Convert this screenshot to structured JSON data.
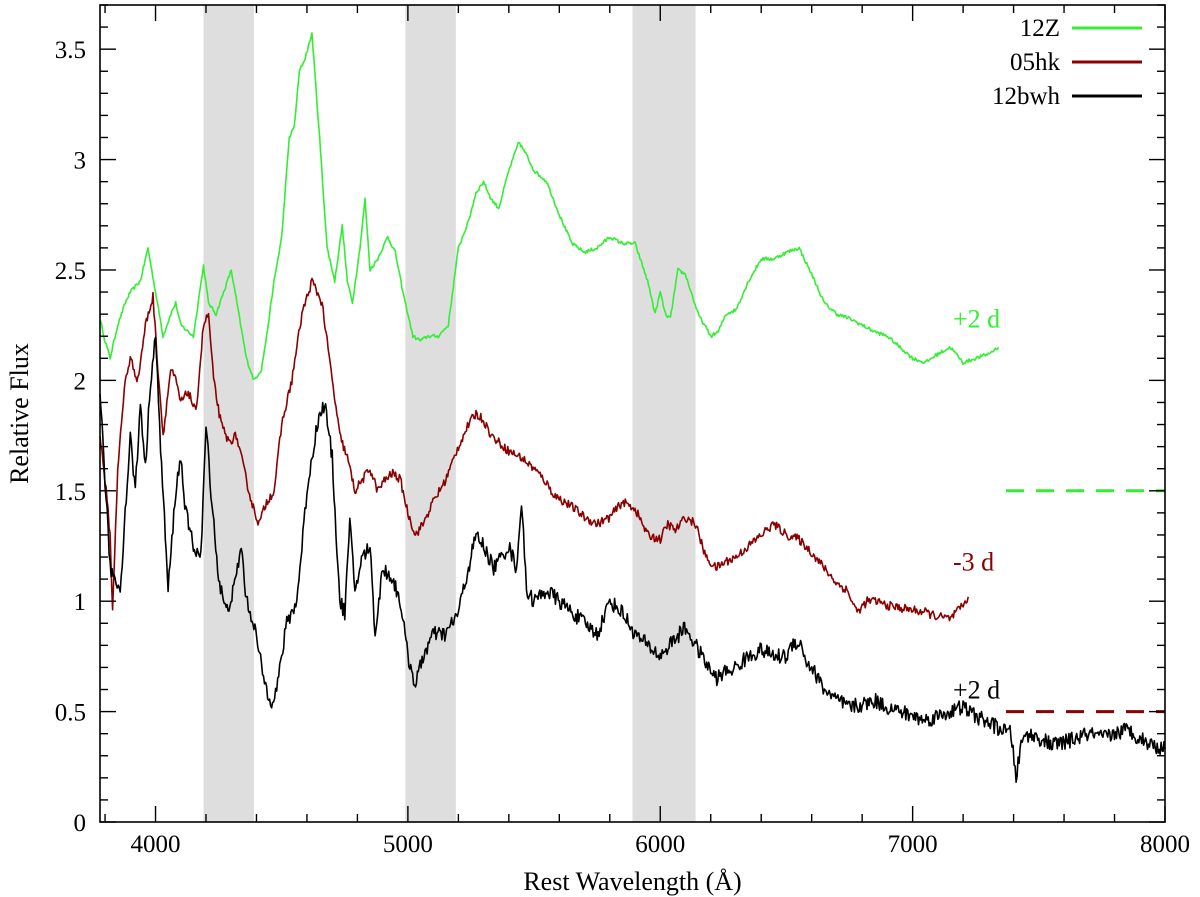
{
  "chart_data": {
    "type": "line",
    "xlabel": "Rest Wavelength (Å)",
    "ylabel": "Relative Flux",
    "xlim": [
      3780,
      8000
    ],
    "ylim": [
      0,
      3.7
    ],
    "xticks": [
      4000,
      5000,
      6000,
      7000,
      8000
    ],
    "yticks": [
      0,
      0.5,
      1,
      1.5,
      2,
      2.5,
      3,
      3.5
    ],
    "ytick_labels": [
      "0",
      "0.5",
      "1",
      "1.5",
      "2",
      "2.5",
      "3",
      "3.5"
    ],
    "grid": false,
    "legend": "top-right",
    "shaded_bands": [
      [
        4190,
        4390
      ],
      [
        4990,
        5190
      ],
      [
        5890,
        6140
      ]
    ],
    "colors": {
      "12Z": "#33ee33",
      "05hk": "#8b0000",
      "12bwh": "#000000",
      "band": "#dedede"
    },
    "series": [
      {
        "name": "12Z",
        "x": [
          3780,
          3800,
          3820,
          3850,
          3880,
          3900,
          3940,
          3970,
          4000,
          4030,
          4060,
          4080,
          4100,
          4150,
          4190,
          4210,
          4240,
          4270,
          4300,
          4330,
          4360,
          4390,
          4420,
          4440,
          4470,
          4500,
          4530,
          4550,
          4570,
          4590,
          4620,
          4650,
          4680,
          4710,
          4740,
          4760,
          4780,
          4810,
          4830,
          4850,
          4880,
          4920,
          4950,
          4980,
          5000,
          5020,
          5050,
          5080,
          5120,
          5160,
          5200,
          5240,
          5270,
          5300,
          5330,
          5360,
          5400,
          5440,
          5470,
          5500,
          5550,
          5600,
          5650,
          5700,
          5750,
          5800,
          5850,
          5900,
          5950,
          5980,
          6000,
          6020,
          6040,
          6070,
          6100,
          6150,
          6200,
          6230,
          6260,
          6300,
          6350,
          6400,
          6450,
          6500,
          6550,
          6600,
          6650,
          6700,
          6750,
          6800,
          6850,
          6900,
          6950,
          7000,
          7050,
          7100,
          7150,
          7200,
          7250,
          7300,
          7340
        ],
        "y": [
          2.28,
          2.18,
          2.1,
          2.25,
          2.35,
          2.4,
          2.45,
          2.6,
          2.4,
          2.2,
          2.3,
          2.35,
          2.25,
          2.2,
          2.52,
          2.35,
          2.3,
          2.4,
          2.5,
          2.3,
          2.1,
          2.0,
          2.05,
          2.2,
          2.45,
          2.65,
          3.1,
          3.15,
          3.4,
          3.45,
          3.57,
          3.1,
          2.6,
          2.45,
          2.7,
          2.45,
          2.35,
          2.6,
          2.82,
          2.5,
          2.55,
          2.65,
          2.58,
          2.4,
          2.3,
          2.2,
          2.18,
          2.2,
          2.2,
          2.25,
          2.6,
          2.72,
          2.85,
          2.9,
          2.82,
          2.78,
          2.95,
          3.08,
          3.02,
          2.95,
          2.9,
          2.75,
          2.62,
          2.58,
          2.6,
          2.65,
          2.62,
          2.62,
          2.45,
          2.3,
          2.4,
          2.3,
          2.28,
          2.5,
          2.48,
          2.3,
          2.2,
          2.22,
          2.3,
          2.32,
          2.45,
          2.55,
          2.55,
          2.58,
          2.6,
          2.48,
          2.35,
          2.3,
          2.28,
          2.25,
          2.22,
          2.2,
          2.15,
          2.1,
          2.08,
          2.12,
          2.15,
          2.08,
          2.1,
          2.12,
          2.15
        ]
      },
      {
        "name": "05hk",
        "x": [
          3780,
          3800,
          3820,
          3830,
          3850,
          3880,
          3900,
          3930,
          3960,
          3990,
          4010,
          4030,
          4060,
          4080,
          4100,
          4130,
          4160,
          4190,
          4210,
          4230,
          4260,
          4290,
          4320,
          4350,
          4380,
          4410,
          4440,
          4470,
          4500,
          4540,
          4580,
          4620,
          4660,
          4700,
          4730,
          4760,
          4790,
          4820,
          4850,
          4880,
          4910,
          4940,
          4970,
          5000,
          5030,
          5060,
          5100,
          5150,
          5200,
          5240,
          5270,
          5300,
          5330,
          5360,
          5400,
          5450,
          5500,
          5540,
          5580,
          5620,
          5660,
          5700,
          5750,
          5800,
          5850,
          5900,
          5950,
          6000,
          6030,
          6060,
          6100,
          6140,
          6180,
          6220,
          6260,
          6300,
          6350,
          6400,
          6450,
          6500,
          6550,
          6600,
          6650,
          6700,
          6740,
          6760,
          6780,
          6820,
          6860,
          6900,
          6950,
          7000,
          7050,
          7100,
          7150,
          7200,
          7220
        ],
        "y": [
          1.75,
          1.55,
          1.3,
          0.95,
          1.6,
          2.0,
          2.1,
          2.0,
          2.25,
          2.38,
          2.05,
          1.75,
          2.05,
          2.0,
          1.9,
          1.95,
          1.85,
          2.25,
          2.3,
          2.0,
          1.8,
          1.72,
          1.75,
          1.6,
          1.45,
          1.35,
          1.45,
          1.5,
          1.8,
          2.0,
          2.3,
          2.45,
          2.35,
          2.0,
          1.75,
          1.65,
          1.5,
          1.55,
          1.6,
          1.5,
          1.55,
          1.58,
          1.55,
          1.4,
          1.3,
          1.35,
          1.45,
          1.55,
          1.7,
          1.8,
          1.85,
          1.82,
          1.75,
          1.72,
          1.68,
          1.65,
          1.6,
          1.55,
          1.48,
          1.45,
          1.42,
          1.38,
          1.35,
          1.38,
          1.45,
          1.42,
          1.3,
          1.28,
          1.35,
          1.32,
          1.38,
          1.35,
          1.2,
          1.15,
          1.18,
          1.2,
          1.25,
          1.3,
          1.35,
          1.3,
          1.28,
          1.22,
          1.15,
          1.08,
          1.05,
          1.0,
          0.95,
          1.0,
          1.0,
          0.98,
          0.97,
          0.96,
          0.95,
          0.93,
          0.92,
          0.98,
          1.02
        ]
      },
      {
        "name": "12bwh",
        "x": [
          3780,
          3800,
          3820,
          3840,
          3860,
          3880,
          3900,
          3920,
          3940,
          3960,
          3980,
          4000,
          4020,
          4050,
          4080,
          4100,
          4120,
          4150,
          4180,
          4200,
          4220,
          4250,
          4280,
          4310,
          4340,
          4360,
          4390,
          4420,
          4440,
          4460,
          4480,
          4520,
          4560,
          4600,
          4640,
          4670,
          4700,
          4730,
          4750,
          4770,
          4790,
          4820,
          4850,
          4870,
          4900,
          4940,
          4970,
          5000,
          5030,
          5060,
          5100,
          5150,
          5200,
          5240,
          5270,
          5300,
          5340,
          5370,
          5400,
          5430,
          5450,
          5470,
          5500,
          5550,
          5600,
          5650,
          5700,
          5750,
          5800,
          5850,
          5900,
          5950,
          6000,
          6050,
          6100,
          6140,
          6180,
          6220,
          6260,
          6300,
          6350,
          6400,
          6450,
          6500,
          6530,
          6560,
          6580,
          6600,
          6650,
          6700,
          6750,
          6800,
          6850,
          6900,
          6950,
          7000,
          7050,
          7100,
          7150,
          7200,
          7250,
          7300,
          7350,
          7390,
          7410,
          7430,
          7450,
          7500,
          7550,
          7600,
          7650,
          7700,
          7750,
          7800,
          7850,
          7900,
          7950,
          8000
        ],
        "y": [
          1.95,
          1.55,
          1.15,
          1.1,
          1.05,
          1.4,
          1.75,
          1.5,
          1.9,
          1.6,
          2.0,
          2.2,
          1.7,
          1.05,
          1.5,
          1.65,
          1.4,
          1.25,
          1.2,
          1.8,
          1.5,
          1.1,
          0.95,
          1.05,
          1.25,
          1.0,
          0.9,
          0.7,
          0.6,
          0.55,
          0.6,
          0.9,
          1.0,
          1.5,
          1.8,
          1.9,
          1.65,
          1.0,
          0.95,
          1.35,
          1.05,
          1.2,
          1.25,
          0.85,
          1.15,
          1.1,
          1.0,
          0.75,
          0.62,
          0.75,
          0.85,
          0.85,
          0.95,
          1.15,
          1.3,
          1.25,
          1.15,
          1.2,
          1.25,
          1.15,
          1.45,
          1.05,
          1.0,
          1.05,
          1.0,
          0.95,
          0.9,
          0.85,
          1.0,
          0.95,
          0.85,
          0.8,
          0.75,
          0.82,
          0.88,
          0.8,
          0.72,
          0.65,
          0.68,
          0.7,
          0.75,
          0.78,
          0.75,
          0.75,
          0.82,
          0.8,
          0.72,
          0.7,
          0.6,
          0.55,
          0.52,
          0.53,
          0.55,
          0.52,
          0.5,
          0.48,
          0.46,
          0.48,
          0.5,
          0.52,
          0.48,
          0.45,
          0.42,
          0.4,
          0.2,
          0.35,
          0.4,
          0.38,
          0.35,
          0.36,
          0.38,
          0.4,
          0.38,
          0.4,
          0.42,
          0.38,
          0.35,
          0.33
        ]
      }
    ],
    "annotations": [
      {
        "text": "+2 d",
        "x": 7160,
        "y": 2.28,
        "color": "#33ee33"
      },
      {
        "text": "-3 d",
        "x": 7160,
        "y": 1.18,
        "color": "#8b0000"
      },
      {
        "text": "+2 d",
        "x": 7160,
        "y": 0.6,
        "color": "#000000"
      }
    ],
    "reference_lines": [
      {
        "y": 1.5,
        "x_start": 7370,
        "x_end": 8000,
        "color": "#33ee33",
        "dash": true
      },
      {
        "y": 0.5,
        "x_start": 7370,
        "x_end": 8000,
        "color": "#8b0000",
        "dash": true
      }
    ]
  }
}
